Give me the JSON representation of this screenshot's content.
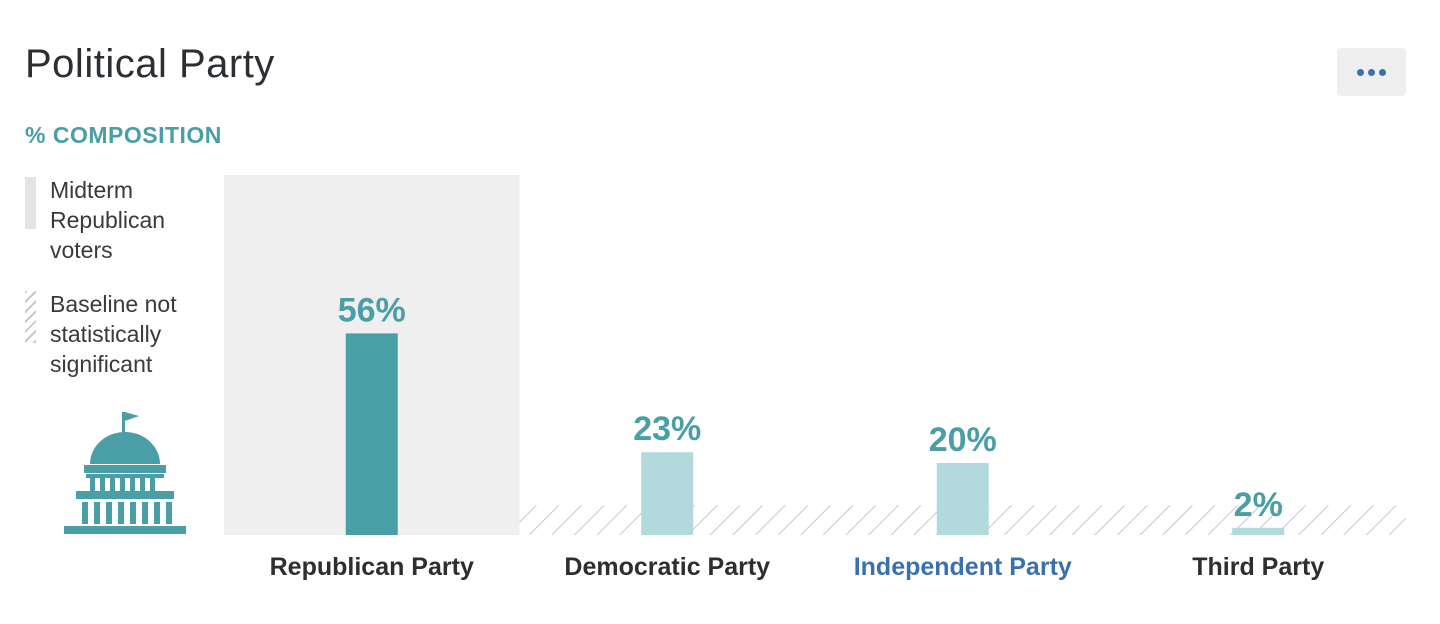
{
  "header": {
    "title": "Political Party",
    "subtitle": "% COMPOSITION",
    "menu_icon": "more-horizontal-icon"
  },
  "legend": {
    "items": [
      {
        "label": "Midterm Republican voters",
        "style": "solid",
        "color": "#e4e4e4"
      },
      {
        "label": "Baseline not statistically significant",
        "style": "hatched",
        "color": "#c9c9c9"
      }
    ]
  },
  "decoration": {
    "icon": "capitol-building-icon",
    "color": "#4a9ea6"
  },
  "colors": {
    "primary_bar": "#4a9ea6",
    "secondary_bar": "#b2dadc",
    "label_value": "#4a9ea6",
    "highlight_label": "#3a6fb0",
    "category_label": "#2e2e2e",
    "highlight_background": "#efefef"
  },
  "chart_data": {
    "type": "bar",
    "title": "Political Party",
    "subtitle": "% COMPOSITION",
    "categories": [
      "Republican Party",
      "Democratic Party",
      "Independent Party",
      "Third Party"
    ],
    "values": [
      56,
      23,
      20,
      2
    ],
    "value_labels": [
      "56%",
      "23%",
      "20%",
      "2%"
    ],
    "unit": "%",
    "ylim": [
      0,
      100
    ],
    "baseline_hatch_value": 5,
    "highlighted_category": "Republican Party",
    "highlighted_label_category": "Independent Party",
    "grid": false,
    "legend_position": "left"
  }
}
